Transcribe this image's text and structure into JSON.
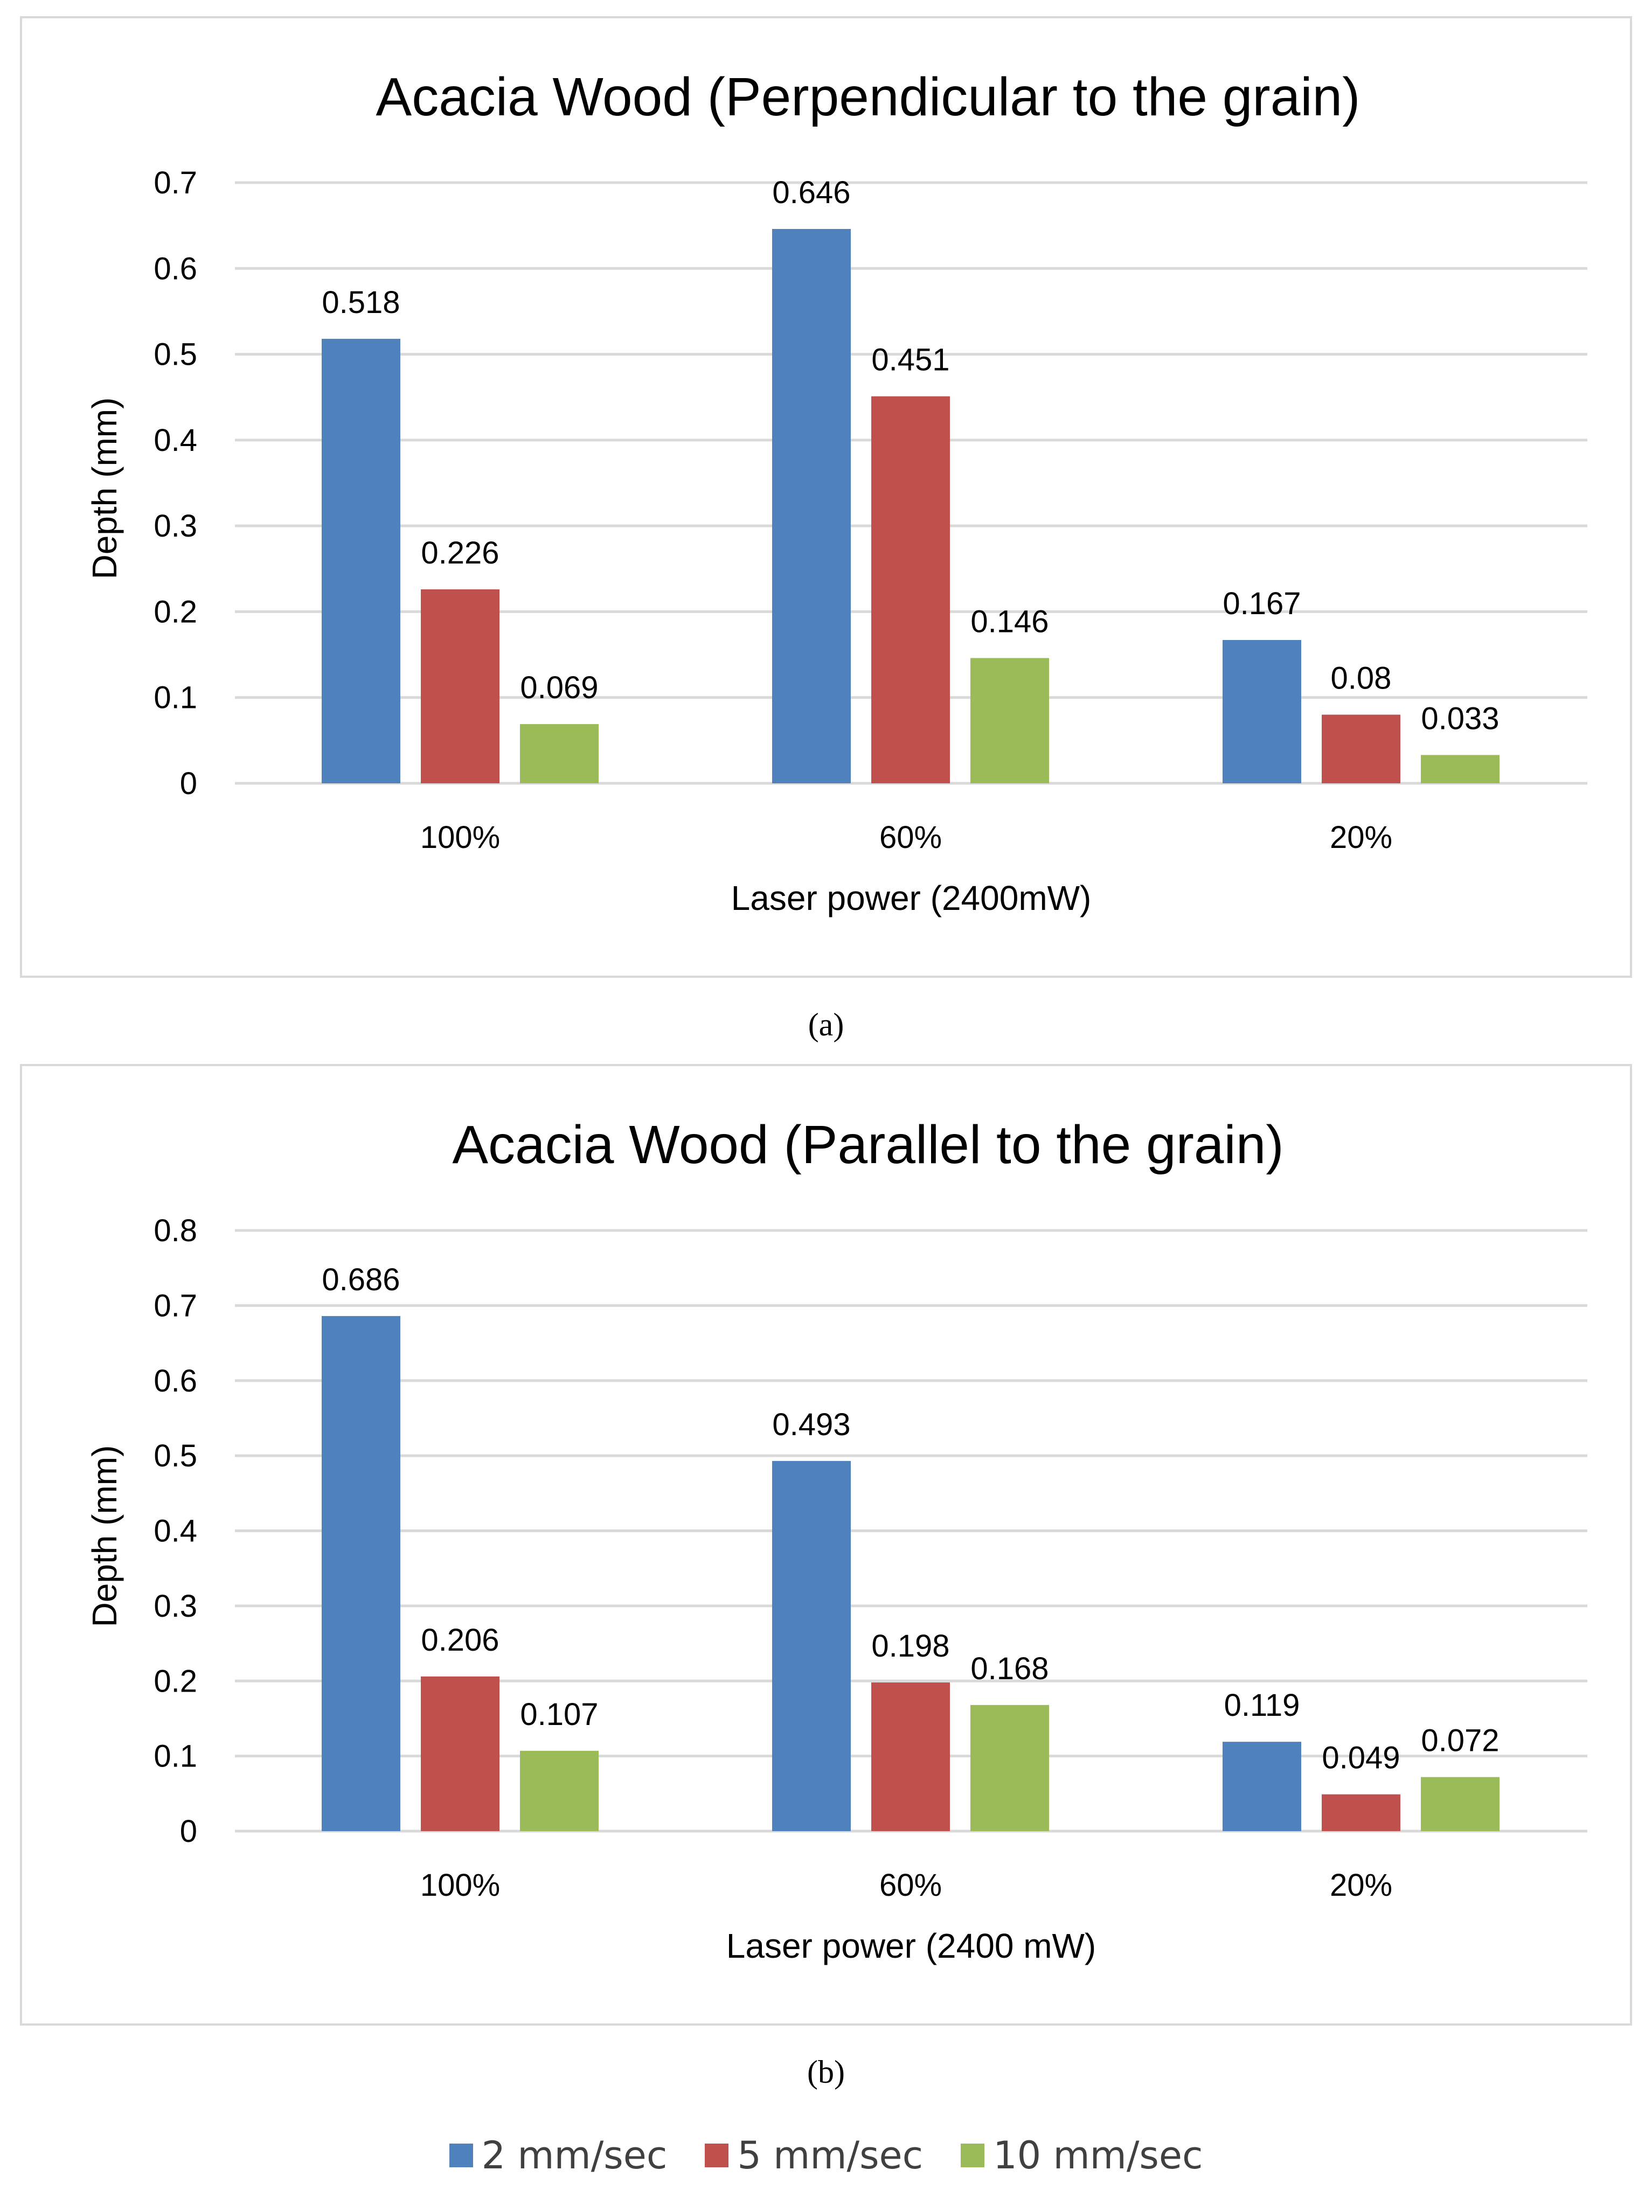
{
  "chart_data": [
    {
      "type": "bar",
      "title": "Acacia Wood (Perpendicular to the grain)",
      "xlabel": "Laser power (2400mW)",
      "ylabel": "Depth (mm)",
      "ylim": [
        0,
        0.7
      ],
      "yticks": [
        "0",
        "0.1",
        "0.2",
        "0.3",
        "0.4",
        "0.5",
        "0.6",
        "0.7"
      ],
      "grid": true,
      "categories": [
        "100%",
        "60%",
        "20%"
      ],
      "series": [
        {
          "name": "2 mm/sec",
          "color": "#4f81bd",
          "values": [
            0.518,
            0.646,
            0.167
          ],
          "labels": [
            "0.518",
            "0.646",
            "0.167"
          ]
        },
        {
          "name": "5 mm/sec",
          "color": "#c0504d",
          "values": [
            0.226,
            0.451,
            0.08
          ],
          "labels": [
            "0.226",
            "0.451",
            "0.08"
          ]
        },
        {
          "name": "10 mm/sec",
          "color": "#9bbb59",
          "values": [
            0.069,
            0.146,
            0.033
          ],
          "labels": [
            "0.069",
            "0.146",
            "0.033"
          ]
        }
      ]
    },
    {
      "type": "bar",
      "title": "Acacia Wood (Parallel to the grain)",
      "xlabel": "Laser power (2400 mW)",
      "ylabel": "Depth (mm)",
      "ylim": [
        0,
        0.8
      ],
      "yticks": [
        "0",
        "0.1",
        "0.2",
        "0.3",
        "0.4",
        "0.5",
        "0.6",
        "0.7",
        "0.8"
      ],
      "grid": true,
      "categories": [
        "100%",
        "60%",
        "20%"
      ],
      "series": [
        {
          "name": "2 mm/sec",
          "color": "#4f81bd",
          "values": [
            0.686,
            0.493,
            0.119
          ],
          "labels": [
            "0.686",
            "0.493",
            "0.119"
          ]
        },
        {
          "name": "5 mm/sec",
          "color": "#c0504d",
          "values": [
            0.206,
            0.198,
            0.049
          ],
          "labels": [
            "0.206",
            "0.198",
            "0.049"
          ]
        },
        {
          "name": "10 mm/sec",
          "color": "#9bbb59",
          "values": [
            0.107,
            0.168,
            0.072
          ],
          "labels": [
            "0.107",
            "0.168",
            "0.072"
          ]
        }
      ]
    }
  ],
  "captions": {
    "a": "(a)",
    "b": "(b)"
  },
  "legend": {
    "placement": "bottom",
    "items": [
      {
        "label": "2 mm/sec",
        "color": "#4f81bd"
      },
      {
        "label": "5 mm/sec",
        "color": "#c0504d"
      },
      {
        "label": "10 mm/sec",
        "color": "#9bbb59"
      }
    ]
  }
}
